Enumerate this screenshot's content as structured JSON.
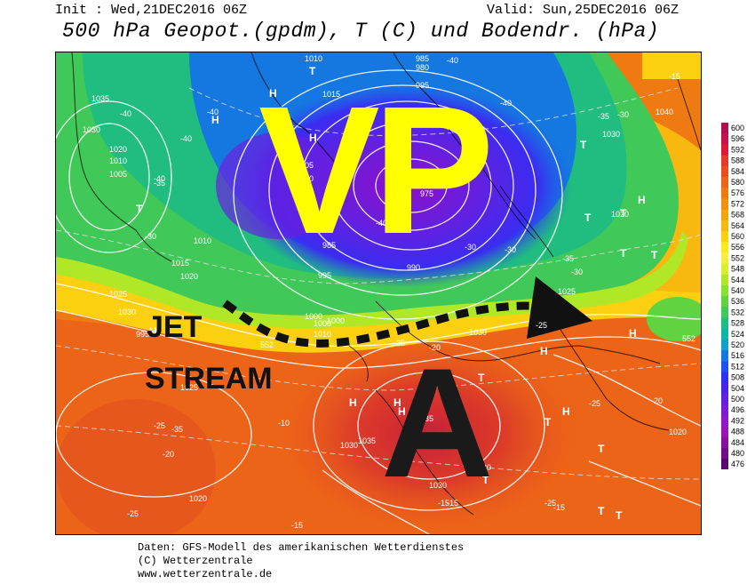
{
  "header": {
    "init": "Init : Wed,21DEC2016 06Z",
    "valid": "Valid: Sun,25DEC2016 06Z",
    "title": "500 hPa Geopot.(gpdm), T (C) und Bodendr. (hPa)"
  },
  "annotations": {
    "low_pressure": "VP",
    "high_pressure": "A",
    "jet_word1": "JET",
    "jet_word2": "STREAM"
  },
  "footer": {
    "line1": "Daten: GFS-Modell des amerikanischen Wetterdienstes",
    "line2": "(C) Wetterzentrale",
    "line3": "www.wetterzentrale.de"
  },
  "legend": {
    "values": [
      "600",
      "596",
      "592",
      "588",
      "584",
      "580",
      "576",
      "572",
      "568",
      "564",
      "560",
      "556",
      "552",
      "548",
      "544",
      "540",
      "536",
      "532",
      "528",
      "524",
      "520",
      "516",
      "512",
      "508",
      "504",
      "500",
      "496",
      "492",
      "488",
      "484",
      "480",
      "476"
    ],
    "colors": [
      "#b0104d",
      "#c8104a",
      "#e01838",
      "#e83a28",
      "#ea4e1e",
      "#ec6418",
      "#f07a12",
      "#f4900e",
      "#f6a40c",
      "#f8b810",
      "#fbd010",
      "#fde818",
      "#f8f040",
      "#d8ee30",
      "#b0e828",
      "#8ce030",
      "#60d440",
      "#40c858",
      "#20bc80",
      "#10b4a8",
      "#10a0c8",
      "#1478e0",
      "#2050f0",
      "#3030f0",
      "#4c24e8",
      "#6420e0",
      "#7c1ad8",
      "#9018c8",
      "#9a14b8",
      "#8a10a0",
      "#720c88",
      "#5a0870"
    ]
  },
  "map_labels": {
    "pressure": [
      "1035",
      "1030",
      "1020",
      "1010",
      "1005",
      "1010",
      "1015",
      "1020",
      "1025",
      "1030",
      "1010",
      "1015",
      "1005",
      "1010",
      "1005",
      "995",
      "1000",
      "985",
      "975",
      "990",
      "985",
      "980",
      "995",
      "1020",
      "1025",
      "1030",
      "1040",
      "1030",
      "1035",
      "1030",
      "1020",
      "1025",
      "1030",
      "1035",
      "1030",
      "1020",
      "1010",
      "1000",
      "1000",
      "995"
    ],
    "temperature": [
      "-40",
      "-40",
      "-40",
      "-35",
      "-30",
      "-40",
      "-40",
      "-30",
      "-30",
      "-25",
      "-35",
      "-35",
      "-25",
      "-25",
      "-20",
      "-25",
      "-30",
      "-35",
      "-40",
      "-40",
      "-15",
      "-15",
      "-10",
      "-15",
      "-20",
      "-15",
      "-25",
      "-30",
      "-35",
      "-20",
      "-15"
    ],
    "highs": [
      "H",
      "H",
      "H",
      "H",
      "H",
      "H",
      "H",
      "H",
      "H",
      "H",
      "H",
      "H",
      "H"
    ],
    "lows": [
      "T",
      "T",
      "T",
      "T",
      "T",
      "T",
      "T",
      "T",
      "T",
      "T",
      "T",
      "T",
      "T",
      "T",
      "T"
    ],
    "isohypse": [
      "552",
      "552"
    ]
  }
}
